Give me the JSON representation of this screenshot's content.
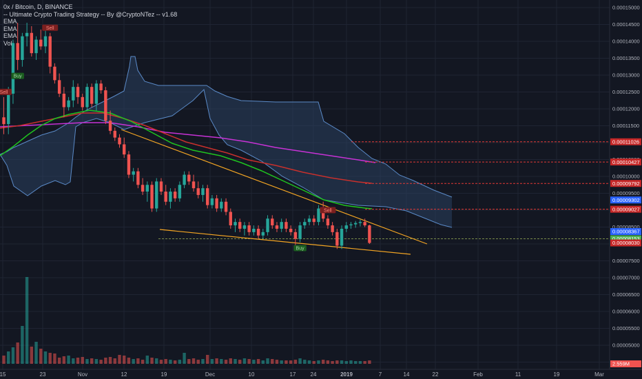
{
  "legend": {
    "symbol": "0x / Bitcoin, D, BINANCE",
    "strategy": "-- Ultimate Crypto Trading Strategy -- By @CryptoNTez -- v1.68",
    "ema1": "EMA",
    "ema2": "EMA",
    "ema3": "EMA",
    "vol": "Vol"
  },
  "colors": {
    "background": "#131722",
    "grid": "#1f2433",
    "up": "#26a69a",
    "down": "#ef5350",
    "cloud_fill": "#2a3f5f",
    "cloud_line": "#5b8bc9",
    "ema_green": "#1fc41f",
    "ema_red": "#c9302c",
    "ema_magenta": "#c832d6",
    "trendline": "#f5a623",
    "resistance": "#e53935",
    "support": "#7a8a4a",
    "last_price_tag": "#4caf50",
    "blue_tag": "#2962ff",
    "vol_tag": "#ef5350"
  },
  "chart_data": {
    "type": "candlestick",
    "x_ticks": [
      "15",
      "23",
      "Nov",
      "12",
      "19",
      "Dec",
      "10",
      "17",
      "24",
      "2019",
      "7",
      "14",
      "22",
      "Feb",
      "11",
      "19",
      "Mar"
    ],
    "y_ticks": [
      "0.00015000",
      "0.00014500",
      "0.00014000",
      "0.00013500",
      "0.00013000",
      "0.00012500",
      "0.00012000",
      "0.00011500",
      "0.00011000",
      "0.00010500",
      "0.00010000",
      "0.00009500",
      "0.00009000",
      "0.00008500",
      "0.00008000",
      "0.00007500",
      "0.00007000",
      "0.00006500",
      "0.00006000",
      "0.00005500",
      "0.00005000",
      "0.00004500",
      "0.00004000"
    ],
    "horizontal_levels": [
      {
        "label": "0.00011026",
        "value": 0.00011026,
        "style": "resistance"
      },
      {
        "label": "0.00010427",
        "value": 0.00010427,
        "style": "resistance"
      },
      {
        "label": "0.00009792",
        "value": 9.792e-05,
        "style": "resistance"
      },
      {
        "label": "0.00009027",
        "value": 9.027e-05,
        "style": "resistance"
      },
      {
        "label": "0.00008153",
        "value": 8.153e-05,
        "style": "support"
      }
    ],
    "price_tags": [
      {
        "label": "0.00009302",
        "value": 9.302e-05,
        "style": "blue"
      },
      {
        "label": "0.00008367",
        "value": 8.367e-05,
        "style": "blue"
      },
      {
        "label": "0.00008153",
        "value": 8.153e-05,
        "style": "green"
      },
      {
        "label": "0.00008030",
        "value": 8.03e-05,
        "style": "red"
      }
    ],
    "volume_tag": "2.559M",
    "signals": [
      {
        "text": "Sell",
        "type": "sell",
        "bar": 0
      },
      {
        "text": "Buy",
        "type": "buy",
        "bar": 3
      },
      {
        "text": "Sell",
        "type": "sell",
        "bar": 10
      },
      {
        "text": "Buy",
        "type": "buy",
        "bar": 64
      },
      {
        "text": "Sell",
        "type": "sell",
        "bar": 70
      }
    ],
    "candles": [
      [
        0.0001175,
        0.0001235,
        0.0001125,
        0.0001155
      ],
      [
        0.0001155,
        0.0001265,
        0.0001125,
        0.0001245
      ],
      [
        0.0001245,
        0.0001405,
        0.0001215,
        0.0001395
      ],
      [
        0.0001395,
        0.0001455,
        0.0001315,
        0.0001345
      ],
      [
        0.0001345,
        0.0001425,
        0.0001325,
        0.0001415
      ],
      [
        0.0001415,
        0.0001455,
        0.0001385,
        0.0001425
      ],
      [
        0.0001425,
        0.0001445,
        0.0001355,
        0.0001365
      ],
      [
        0.0001365,
        0.0001415,
        0.0001345,
        0.0001405
      ],
      [
        0.0001405,
        0.0001435,
        0.0001375,
        0.0001385
      ],
      [
        0.0001385,
        0.0001435,
        0.0001365,
        0.0001415
      ],
      [
        0.0001415,
        0.0001425,
        0.0001305,
        0.0001325
      ],
      [
        0.0001325,
        0.0001335,
        0.0001275,
        0.0001285
      ],
      [
        0.0001285,
        0.0001305,
        0.0001235,
        0.0001245
      ],
      [
        0.0001245,
        0.0001265,
        0.0001175,
        0.0001205
      ],
      [
        0.0001205,
        0.0001235,
        0.0001195,
        0.0001225
      ],
      [
        0.0001225,
        0.0001285,
        0.0001205,
        0.0001265
      ],
      [
        0.0001265,
        0.0001275,
        0.0001215,
        0.0001235
      ],
      [
        0.0001235,
        0.0001245,
        0.0001195,
        0.0001205
      ],
      [
        0.0001205,
        0.0001275,
        0.0001195,
        0.0001265
      ],
      [
        0.0001265,
        0.0001275,
        0.0001205,
        0.0001215
      ],
      [
        0.0001215,
        0.0001285,
        0.0001195,
        0.0001275
      ],
      [
        0.0001275,
        0.0001285,
        0.0001245,
        0.0001255
      ],
      [
        0.0001255,
        0.0001265,
        0.0001155,
        0.0001165
      ],
      [
        0.0001165,
        0.0001195,
        0.0001125,
        0.0001135
      ],
      [
        0.0001135,
        0.0001145,
        0.0001105,
        0.0001115
      ],
      [
        0.0001115,
        0.0001125,
        0.0001085,
        0.0001095
      ],
      [
        0.0001095,
        0.0001115,
        0.0001055,
        0.0001065
      ],
      [
        0.0001065,
        0.0001075,
        9.95e-05,
        0.0001005
      ],
      [
        0.0001005,
        0.0001025,
        9.85e-05,
        0.0001015
      ],
      [
        0.0001015,
        0.0001025,
        9.65e-05,
        9.75e-05
      ],
      [
        9.75e-05,
        9.95e-05,
        9.45e-05,
        9.55e-05
      ],
      [
        9.55e-05,
        9.85e-05,
        9.25e-05,
        9.75e-05
      ],
      [
        9.75e-05,
        9.85e-05,
        8.95e-05,
        9.05e-05
      ],
      [
        9.05e-05,
        9.95e-05,
        8.95e-05,
        9.85e-05
      ],
      [
        9.85e-05,
        9.95e-05,
        9.45e-05,
        9.55e-05
      ],
      [
        9.55e-05,
        9.75e-05,
        9.15e-05,
        9.25e-05
      ],
      [
        9.25e-05,
        9.65e-05,
        9.05e-05,
        9.55e-05
      ],
      [
        9.55e-05,
        9.65e-05,
        9.25e-05,
        9.35e-05
      ],
      [
        9.35e-05,
        9.85e-05,
        9.25e-05,
        9.75e-05
      ],
      [
        9.75e-05,
        0.0001015,
        9.65e-05,
        0.0001005
      ],
      [
        0.0001005,
        0.0001015,
        9.75e-05,
        9.85e-05
      ],
      [
        9.85e-05,
        0.0001005,
        9.55e-05,
        9.65e-05
      ],
      [
        9.65e-05,
        9.85e-05,
        9.35e-05,
        9.45e-05
      ],
      [
        9.45e-05,
        9.75e-05,
        9.25e-05,
        9.65e-05
      ],
      [
        9.65e-05,
        9.75e-05,
        9.05e-05,
        9.15e-05
      ],
      [
        9.15e-05,
        9.45e-05,
        9.05e-05,
        9.35e-05
      ],
      [
        9.35e-05,
        9.45e-05,
        8.95e-05,
        9.05e-05
      ],
      [
        9.05e-05,
        9.35e-05,
        8.95e-05,
        9.25e-05
      ],
      [
        9.25e-05,
        9.35e-05,
        8.85e-05,
        8.95e-05
      ],
      [
        8.95e-05,
        9.05e-05,
        8.45e-05,
        8.55e-05
      ],
      [
        8.55e-05,
        8.75e-05,
        8.35e-05,
        8.65e-05
      ],
      [
        8.65e-05,
        8.75e-05,
        8.35e-05,
        8.45e-05
      ],
      [
        8.45e-05,
        8.65e-05,
        8.25e-05,
        8.55e-05
      ],
      [
        8.55e-05,
        8.65e-05,
        8.25e-05,
        8.35e-05
      ],
      [
        8.35e-05,
        8.55e-05,
        8.25e-05,
        8.45e-05
      ],
      [
        8.45e-05,
        8.55e-05,
        8.15e-05,
        8.25e-05
      ],
      [
        8.25e-05,
        8.45e-05,
        8.15e-05,
        8.35e-05
      ],
      [
        8.35e-05,
        8.85e-05,
        8.25e-05,
        8.75e-05
      ],
      [
        8.75e-05,
        8.85e-05,
        8.45e-05,
        8.55e-05
      ],
      [
        8.55e-05,
        8.65e-05,
        8.35e-05,
        8.45e-05
      ],
      [
        8.45e-05,
        8.75e-05,
        8.35e-05,
        8.65e-05
      ],
      [
        8.65e-05,
        8.75e-05,
        8.35e-05,
        8.45e-05
      ],
      [
        8.45e-05,
        8.55e-05,
        8.25e-05,
        8.35e-05
      ],
      [
        8.35e-05,
        8.45e-05,
        7.95e-05,
        8.15e-05
      ],
      [
        8.15e-05,
        8.65e-05,
        8.05e-05,
        8.55e-05
      ],
      [
        8.55e-05,
        8.75e-05,
        8.45e-05,
        8.65e-05
      ],
      [
        8.65e-05,
        8.85e-05,
        8.55e-05,
        8.75e-05
      ],
      [
        8.75e-05,
        8.85e-05,
        8.55e-05,
        8.65e-05
      ],
      [
        8.65e-05,
        9.15e-05,
        8.55e-05,
        9.05e-05
      ],
      [
        9.05e-05,
        9.25e-05,
        8.65e-05,
        8.75e-05
      ],
      [
        8.75e-05,
        8.85e-05,
        8.45e-05,
        8.55e-05
      ],
      [
        8.55e-05,
        8.65e-05,
        8.25e-05,
        8.35e-05
      ],
      [
        8.35e-05,
        8.45e-05,
        7.85e-05,
        7.95e-05
      ],
      [
        7.95e-05,
        8.55e-05,
        7.85e-05,
        8.45e-05
      ],
      [
        8.45e-05,
        8.65e-05,
        8.35e-05,
        8.55e-05
      ],
      [
        8.55e-05,
        8.65e-05,
        8.45e-05,
        8.58e-05
      ],
      [
        8.58e-05,
        8.68e-05,
        8.48e-05,
        8.62e-05
      ],
      [
        8.62e-05,
        8.72e-05,
        8.52e-05,
        8.65e-05
      ],
      [
        8.65e-05,
        8.75e-05,
        8.5e-05,
        8.55e-05
      ],
      [
        8.55e-05,
        8.57e-05,
        8e-05,
        8.03e-05
      ]
    ],
    "volume": [
      1.2,
      1.8,
      2.4,
      3.1,
      5.5,
      12.6,
      2.5,
      3.2,
      2.2,
      1.8,
      1.6,
      1.5,
      0.9,
      1.1,
      1.2,
      0.8,
      0.9,
      1.0,
      0.7,
      0.8,
      0.7,
      0.6,
      0.9,
      1.0,
      0.8,
      1.3,
      1.2,
      0.9,
      0.7,
      0.8,
      0.6,
      1.2,
      0.9,
      0.8,
      0.6,
      0.7,
      0.6,
      0.5,
      0.6,
      1.6,
      0.7,
      0.8,
      0.6,
      0.7,
      1.3,
      0.7,
      0.8,
      0.7,
      0.6,
      0.8,
      0.7,
      0.6,
      0.8,
      0.7,
      0.6,
      0.7,
      0.5,
      0.8,
      0.7,
      0.6,
      0.5,
      0.5,
      0.5,
      0.6,
      0.8,
      0.6,
      0.5,
      0.4,
      0.5,
      0.6,
      0.5,
      0.4,
      0.5,
      0.5,
      0.4,
      0.5,
      0.4,
      0.4,
      0.4,
      0.5
    ]
  }
}
